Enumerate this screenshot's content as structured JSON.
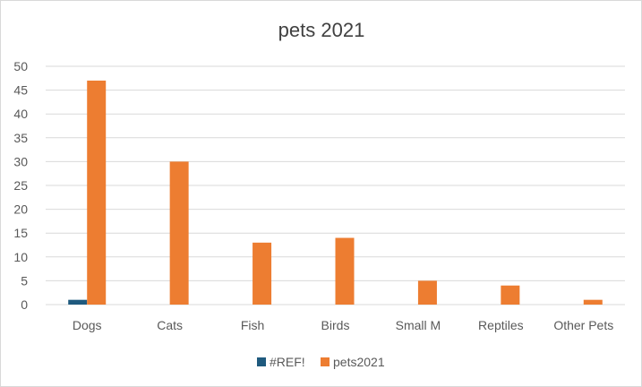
{
  "chart_data": {
    "type": "bar",
    "title": "pets 2021",
    "categories": [
      "Dogs",
      "Cats",
      "Fish",
      "Birds",
      "Small M",
      "Reptiles",
      "Other Pets"
    ],
    "series": [
      {
        "name": "#REF!",
        "color": "#1f5a7e",
        "values": [
          1,
          null,
          null,
          null,
          null,
          null,
          null
        ]
      },
      {
        "name": "pets2021",
        "color": "#ed7d31",
        "values": [
          47,
          30,
          13,
          14,
          5,
          4,
          1
        ]
      }
    ],
    "ylim": [
      0,
      50
    ],
    "yticks": [
      "0",
      "5",
      "10",
      "15",
      "20",
      "25",
      "30",
      "35",
      "40",
      "45",
      "50"
    ],
    "grid": true,
    "legend_position": "bottom"
  }
}
